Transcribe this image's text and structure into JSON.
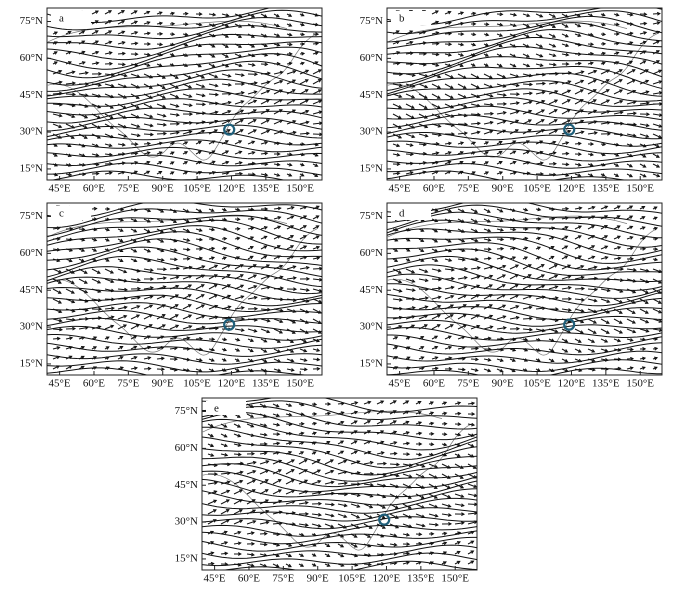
{
  "panels": [
    {
      "label": "a"
    },
    {
      "label": "b"
    },
    {
      "label": "c"
    },
    {
      "label": "d"
    },
    {
      "label": "e"
    }
  ],
  "lat_ticks": [
    "75°N",
    "60°N",
    "45°N",
    "30°N",
    "15°N"
  ],
  "lon_ticks": [
    "45°E",
    "60°E",
    "75°E",
    "90°E",
    "105°E",
    "120°E",
    "135°E",
    "150°E"
  ]
}
